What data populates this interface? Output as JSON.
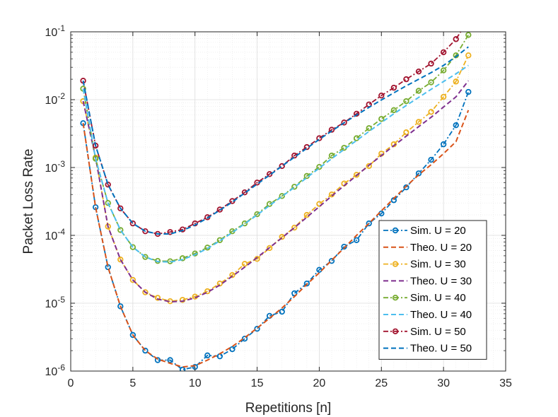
{
  "chart_data": {
    "type": "line",
    "title": "",
    "xlabel": "Repetitions [n]",
    "ylabel": "Packet Loss Rate",
    "xlim": [
      0,
      35
    ],
    "ylim": [
      1e-06,
      0.1
    ],
    "yscale": "log",
    "grid": true,
    "minor_grid": true,
    "legend_position": "bottom-right",
    "x_ticks": [
      0,
      5,
      10,
      15,
      20,
      25,
      30,
      35
    ],
    "y_ticks": [
      {
        "value": 1e-06,
        "base": "10",
        "exp": "-6"
      },
      {
        "value": 1e-05,
        "base": "10",
        "exp": "-5"
      },
      {
        "value": 0.0001,
        "base": "10",
        "exp": "-4"
      },
      {
        "value": 0.001,
        "base": "10",
        "exp": "-3"
      },
      {
        "value": 0.01,
        "base": "10",
        "exp": "-2"
      },
      {
        "value": 0.1,
        "base": "10",
        "exp": "-1"
      }
    ],
    "x": [
      1,
      2,
      3,
      4,
      5,
      6,
      7,
      8,
      9,
      10,
      11,
      12,
      13,
      14,
      15,
      16,
      17,
      18,
      19,
      20,
      21,
      22,
      23,
      24,
      25,
      26,
      27,
      28,
      29,
      30,
      31,
      32
    ],
    "series": [
      {
        "name": "Sim. U = 20",
        "style": "sim",
        "color": "#0072BD",
        "values": [
          0.0045,
          0.00026,
          3.4e-05,
          9e-06,
          3.4e-06,
          2e-06,
          1.45e-06,
          1.45e-06,
          1.05e-06,
          1.15e-06,
          1.7e-06,
          1.65e-06,
          2.1e-06,
          3e-06,
          4.2e-06,
          6.5e-06,
          7.5e-06,
          1.4e-05,
          1.95e-05,
          3.1e-05,
          4.2e-05,
          6.8e-05,
          8.5e-05,
          0.00015,
          0.00021,
          0.00033,
          0.00051,
          0.00082,
          0.0013,
          0.0022,
          0.0042,
          0.013
        ]
      },
      {
        "name": "Theo. U = 20",
        "style": "theo",
        "color": "#D95319",
        "values": [
          0.0045,
          0.00026,
          3.4e-05,
          9e-06,
          3.4e-06,
          2e-06,
          1.5e-06,
          1.3e-06,
          1.15e-06,
          1.2e-06,
          1.45e-06,
          1.8e-06,
          2.3e-06,
          3.1e-06,
          4.3e-06,
          6e-06,
          8.5e-06,
          1.25e-05,
          1.9e-05,
          2.8e-05,
          4.3e-05,
          6.5e-05,
          0.0001,
          0.00015,
          0.00023,
          0.00035,
          0.00053,
          0.00078,
          0.0011,
          0.0016,
          0.0024,
          0.007
        ]
      },
      {
        "name": "Sim. U = 30",
        "style": "sim",
        "color": "#EDB120",
        "values": [
          0.0095,
          0.0014,
          0.000135,
          4.4e-05,
          2.2e-05,
          1.45e-05,
          1.2e-05,
          1.07e-05,
          1.12e-05,
          1.25e-05,
          1.5e-05,
          1.95e-05,
          2.6e-05,
          3.8e-05,
          4.5e-05,
          6.5e-05,
          9.5e-05,
          0.00013,
          0.0002,
          0.00029,
          0.0004,
          0.00058,
          0.00078,
          0.00105,
          0.0016,
          0.0022,
          0.0033,
          0.0047,
          0.0066,
          0.011,
          0.0185,
          0.045
        ]
      },
      {
        "name": "Theo. U = 30",
        "style": "theo",
        "color": "#7E2F8E",
        "values": [
          0.0095,
          0.0014,
          0.000135,
          4.4e-05,
          2.2e-05,
          1.45e-05,
          1.15e-05,
          1.05e-05,
          1.07e-05,
          1.2e-05,
          1.45e-05,
          1.85e-05,
          2.5e-05,
          3.4e-05,
          4.7e-05,
          6.6e-05,
          9.2e-05,
          0.00013,
          0.000185,
          0.000265,
          0.00038,
          0.00054,
          0.00076,
          0.00108,
          0.0015,
          0.0021,
          0.0029,
          0.004,
          0.0055,
          0.0078,
          0.011,
          0.019
        ]
      },
      {
        "name": "Sim. U = 40",
        "style": "sim",
        "color": "#77AC30",
        "values": [
          0.0145,
          0.00135,
          0.0003,
          0.00012,
          6.7e-05,
          4.8e-05,
          4.2e-05,
          4.15e-05,
          4.6e-05,
          5.4e-05,
          6.6e-05,
          8.5e-05,
          0.000115,
          0.00015,
          0.000205,
          0.00029,
          0.00038,
          0.00052,
          0.00075,
          0.00102,
          0.0015,
          0.00195,
          0.0027,
          0.0038,
          0.0052,
          0.007,
          0.0095,
          0.0135,
          0.018,
          0.027,
          0.045,
          0.09
        ]
      },
      {
        "name": "Theo. U = 40",
        "style": "theo",
        "color": "#4DBEEE",
        "values": [
          0.0145,
          0.00135,
          0.0003,
          0.00012,
          6.7e-05,
          4.8e-05,
          4.1e-05,
          4.05e-05,
          4.4e-05,
          5.2e-05,
          6.4e-05,
          8.3e-05,
          0.00011,
          0.000148,
          0.0002,
          0.000275,
          0.000375,
          0.00051,
          0.00071,
          0.00098,
          0.00135,
          0.00185,
          0.0025,
          0.0034,
          0.0046,
          0.0062,
          0.0082,
          0.0108,
          0.0142,
          0.0185,
          0.024,
          0.032
        ]
      },
      {
        "name": "Sim. U = 50",
        "style": "sim",
        "color": "#A2142F",
        "values": [
          0.019,
          0.0021,
          0.00056,
          0.00025,
          0.00015,
          0.000115,
          0.000105,
          0.000112,
          0.000122,
          0.00015,
          0.000185,
          0.00024,
          0.00032,
          0.00043,
          0.0006,
          0.0008,
          0.00105,
          0.0015,
          0.002,
          0.0027,
          0.0036,
          0.0046,
          0.0062,
          0.0085,
          0.0115,
          0.015,
          0.02,
          0.026,
          0.034,
          0.05,
          0.078,
          0.15
        ]
      },
      {
        "name": "Theo. U = 50",
        "style": "theo",
        "color": "#0072BD",
        "values": [
          0.019,
          0.0021,
          0.00056,
          0.00025,
          0.00015,
          0.000115,
          0.000105,
          0.000105,
          0.000118,
          0.000142,
          0.00018,
          0.000235,
          0.00031,
          0.00042,
          0.00057,
          0.00077,
          0.00105,
          0.00142,
          0.00192,
          0.0026,
          0.00345,
          0.00455,
          0.00595,
          0.0077,
          0.0099,
          0.0126,
          0.016,
          0.02,
          0.025,
          0.032,
          0.043,
          0.06
        ]
      }
    ]
  }
}
